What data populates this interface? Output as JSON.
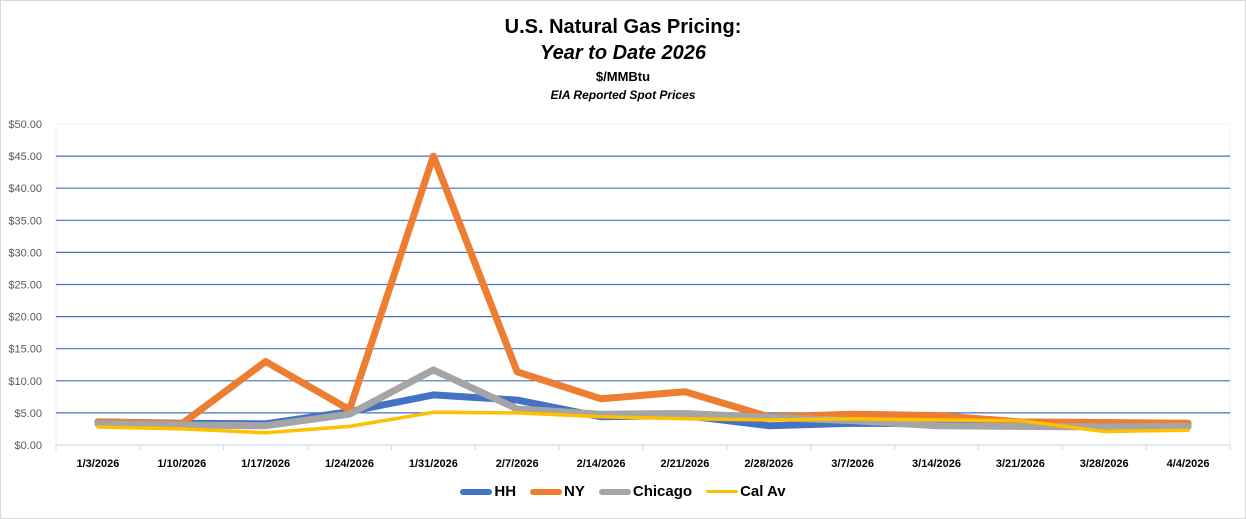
{
  "chart_data": {
    "type": "line",
    "title": "U.S. Natural Gas Pricing:",
    "subtitle": "Year to Date 2026",
    "unit_label": "$/MMBtu",
    "source_label": "EIA Reported Spot Prices",
    "xlabel": "",
    "ylabel": "",
    "ylim": [
      0,
      50
    ],
    "y_ticks": [
      0,
      5,
      10,
      15,
      20,
      25,
      30,
      35,
      40,
      45,
      50
    ],
    "y_tick_labels": [
      "$0.00",
      "$5.00",
      "$10.00",
      "$15.00",
      "$20.00",
      "$25.00",
      "$30.00",
      "$35.00",
      "$40.00",
      "$45.00",
      "$50.00"
    ],
    "grid": true,
    "legend_position": "bottom",
    "categories": [
      "1/3/2026",
      "1/10/2026",
      "1/17/2026",
      "1/24/2026",
      "1/31/2026",
      "2/7/2026",
      "2/14/2026",
      "2/21/2026",
      "2/28/2026",
      "3/7/2026",
      "3/14/2026",
      "3/21/2026",
      "3/28/2026",
      "4/4/2026"
    ],
    "series": [
      {
        "name": "HH",
        "color": "#4472c4",
        "values": [
          3.6,
          3.4,
          3.3,
          5.2,
          7.8,
          7.0,
          4.4,
          4.6,
          3.0,
          3.4,
          3.3,
          3.2,
          3.0,
          2.9
        ]
      },
      {
        "name": "NY",
        "color": "#ed7d31",
        "values": [
          3.6,
          3.3,
          13.0,
          5.5,
          45.0,
          11.4,
          7.2,
          8.3,
          4.4,
          4.8,
          4.6,
          3.6,
          3.5,
          3.4
        ]
      },
      {
        "name": "Chicago",
        "color": "#a5a5a5",
        "values": [
          3.3,
          3.1,
          3.0,
          4.8,
          11.7,
          5.6,
          4.8,
          4.9,
          4.3,
          3.8,
          3.0,
          2.9,
          2.8,
          2.9
        ]
      },
      {
        "name": "Cal Av",
        "color": "#ffc000",
        "values": [
          2.8,
          2.5,
          1.9,
          2.9,
          5.1,
          5.0,
          4.4,
          4.1,
          3.9,
          4.1,
          3.9,
          3.8,
          2.1,
          2.3
        ]
      }
    ]
  }
}
